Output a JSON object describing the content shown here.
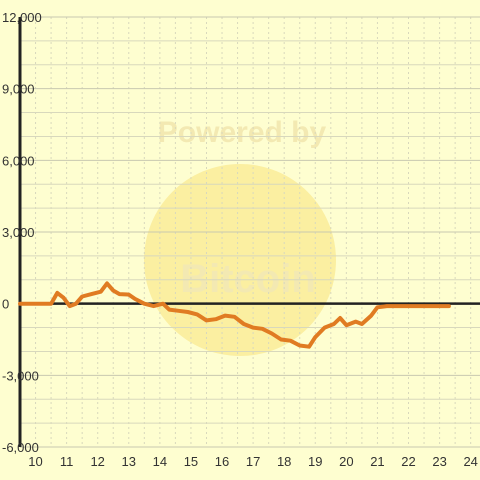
{
  "colors": {
    "background": "#fefed0",
    "grid_minor": "#d8d8bc",
    "grid_major": "#c8c8b0",
    "axis": "#222222",
    "line": "#e07b22",
    "watermark": "#f7e27a",
    "watermark_text": "#f3e9b2"
  },
  "watermark": {
    "line1": "Powered by",
    "line2": "Bitcoin"
  },
  "chart_data": {
    "type": "line",
    "title": "",
    "xlabel": "",
    "ylabel": "",
    "xlim": [
      9.5,
      24.3
    ],
    "ylim": [
      -6000,
      12000
    ],
    "grid": true,
    "x_ticks": [
      10,
      11,
      12,
      13,
      14,
      15,
      16,
      17,
      18,
      19,
      20,
      21,
      22,
      23,
      24
    ],
    "x_tick_labels": [
      "10",
      "11",
      "12",
      "13",
      "14",
      "15",
      "16",
      "17",
      "18",
      "19",
      "20",
      "21",
      "22",
      "23",
      "24"
    ],
    "y_ticks": [
      12000,
      9000,
      6000,
      3000,
      0,
      -3000,
      -6000
    ],
    "y_tick_labels": [
      "12,000",
      "9,000",
      "6,000",
      "3,000",
      "0",
      "-3,000",
      "-6,000"
    ],
    "series": [
      {
        "values": [
          [
            9.5,
            0
          ],
          [
            10.0,
            0
          ],
          [
            10.5,
            0
          ],
          [
            10.7,
            450
          ],
          [
            10.9,
            250
          ],
          [
            11.1,
            -100
          ],
          [
            11.3,
            0
          ],
          [
            11.5,
            300
          ],
          [
            11.8,
            400
          ],
          [
            12.1,
            500
          ],
          [
            12.3,
            850
          ],
          [
            12.5,
            550
          ],
          [
            12.7,
            400
          ],
          [
            13.0,
            380
          ],
          [
            13.2,
            200
          ],
          [
            13.5,
            0
          ],
          [
            13.8,
            -100
          ],
          [
            14.1,
            0
          ],
          [
            14.3,
            -250
          ],
          [
            14.6,
            -300
          ],
          [
            14.9,
            -350
          ],
          [
            15.2,
            -450
          ],
          [
            15.5,
            -700
          ],
          [
            15.8,
            -650
          ],
          [
            16.1,
            -500
          ],
          [
            16.4,
            -550
          ],
          [
            16.7,
            -850
          ],
          [
            17.0,
            -1000
          ],
          [
            17.3,
            -1050
          ],
          [
            17.6,
            -1250
          ],
          [
            17.9,
            -1500
          ],
          [
            18.2,
            -1550
          ],
          [
            18.5,
            -1750
          ],
          [
            18.8,
            -1800
          ],
          [
            19.0,
            -1400
          ],
          [
            19.3,
            -1000
          ],
          [
            19.6,
            -850
          ],
          [
            19.8,
            -600
          ],
          [
            20.0,
            -900
          ],
          [
            20.3,
            -750
          ],
          [
            20.5,
            -850
          ],
          [
            20.8,
            -500
          ],
          [
            21.0,
            -150
          ],
          [
            21.3,
            -100
          ],
          [
            21.5,
            -100
          ],
          [
            22.0,
            -100
          ],
          [
            22.5,
            -100
          ],
          [
            23.0,
            -100
          ],
          [
            23.3,
            -100
          ]
        ]
      }
    ]
  }
}
